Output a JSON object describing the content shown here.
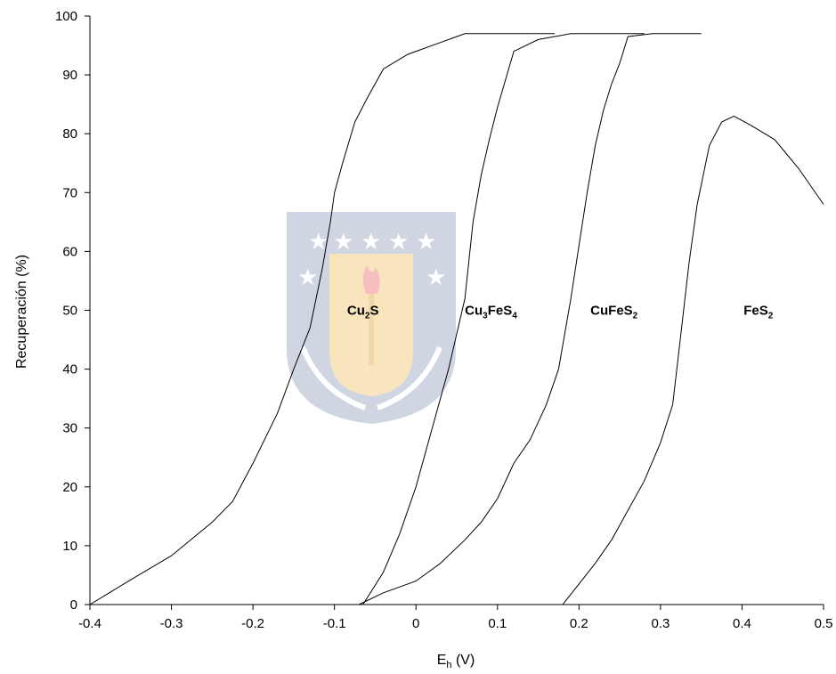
{
  "chart_data": {
    "type": "line",
    "title": "",
    "xlabel": "E",
    "xlabel_sub": "h",
    "xlabel_unit": " (V)",
    "ylabel": "Recuperación (%)",
    "xlim": [
      -0.4,
      0.5
    ],
    "ylim": [
      0,
      100
    ],
    "x_ticks": [
      "-0.4",
      "-0.3",
      "-0.2",
      "-0.1",
      "0",
      "0.1",
      "0.2",
      "0.3",
      "0.4",
      "0.5"
    ],
    "y_ticks": [
      "0",
      "10",
      "20",
      "30",
      "40",
      "50",
      "60",
      "70",
      "80",
      "90",
      "100"
    ],
    "grid": false,
    "series": [
      {
        "label_main": "Cu",
        "label_sub1": "2",
        "label_mid": "S",
        "label_sub2": "",
        "label_pos": [
          -0.065,
          50
        ],
        "points": [
          [
            -0.4,
            0
          ],
          [
            -0.35,
            4.2
          ],
          [
            -0.3,
            8.3
          ],
          [
            -0.25,
            14
          ],
          [
            -0.225,
            17.5
          ],
          [
            -0.2,
            24
          ],
          [
            -0.17,
            32.5
          ],
          [
            -0.15,
            40
          ],
          [
            -0.13,
            47
          ],
          [
            -0.115,
            57
          ],
          [
            -0.105,
            65
          ],
          [
            -0.1,
            70
          ],
          [
            -0.09,
            75
          ],
          [
            -0.075,
            82
          ],
          [
            -0.06,
            86
          ],
          [
            -0.04,
            91
          ],
          [
            -0.01,
            93.5
          ],
          [
            0.03,
            95.5
          ],
          [
            0.06,
            97
          ],
          [
            0.17,
            97
          ]
        ]
      },
      {
        "label_main": "Cu",
        "label_sub1": "3",
        "label_mid": "FeS",
        "label_sub2": "4",
        "label_pos": [
          0.092,
          50
        ],
        "points": [
          [
            -0.065,
            0
          ],
          [
            -0.04,
            5.5
          ],
          [
            -0.02,
            12
          ],
          [
            0,
            20
          ],
          [
            0.02,
            30
          ],
          [
            0.04,
            40
          ],
          [
            0.06,
            52
          ],
          [
            0.07,
            65
          ],
          [
            0.08,
            73
          ],
          [
            0.09,
            79
          ],
          [
            0.1,
            84.5
          ],
          [
            0.12,
            94
          ],
          [
            0.15,
            96
          ],
          [
            0.19,
            97
          ],
          [
            0.28,
            97
          ]
        ]
      },
      {
        "label_main": "CuFeS",
        "label_sub1": "2",
        "label_mid": "",
        "label_sub2": "",
        "label_pos": [
          0.243,
          50
        ],
        "points": [
          [
            -0.07,
            0
          ],
          [
            -0.04,
            2
          ],
          [
            0,
            4
          ],
          [
            0.03,
            7
          ],
          [
            0.06,
            11
          ],
          [
            0.08,
            14
          ],
          [
            0.1,
            18
          ],
          [
            0.12,
            24
          ],
          [
            0.14,
            28
          ],
          [
            0.16,
            34
          ],
          [
            0.175,
            40
          ],
          [
            0.19,
            52
          ],
          [
            0.2,
            61
          ],
          [
            0.21,
            70
          ],
          [
            0.22,
            78
          ],
          [
            0.23,
            84
          ],
          [
            0.24,
            88.5
          ],
          [
            0.25,
            92
          ],
          [
            0.26,
            96.5
          ],
          [
            0.29,
            97
          ],
          [
            0.35,
            97
          ]
        ]
      },
      {
        "label_main": "FeS",
        "label_sub1": "2",
        "label_mid": "",
        "label_sub2": "",
        "label_pos": [
          0.42,
          50
        ],
        "points": [
          [
            0.18,
            0
          ],
          [
            0.2,
            3.5
          ],
          [
            0.22,
            7
          ],
          [
            0.24,
            11
          ],
          [
            0.26,
            16
          ],
          [
            0.28,
            21
          ],
          [
            0.3,
            27.5
          ],
          [
            0.315,
            34
          ],
          [
            0.325,
            46
          ],
          [
            0.335,
            58
          ],
          [
            0.345,
            68
          ],
          [
            0.36,
            78
          ],
          [
            0.375,
            82
          ],
          [
            0.39,
            83
          ],
          [
            0.41,
            81.5
          ],
          [
            0.44,
            79
          ],
          [
            0.47,
            74
          ],
          [
            0.5,
            68
          ]
        ]
      }
    ]
  },
  "watermark": "university-crest"
}
